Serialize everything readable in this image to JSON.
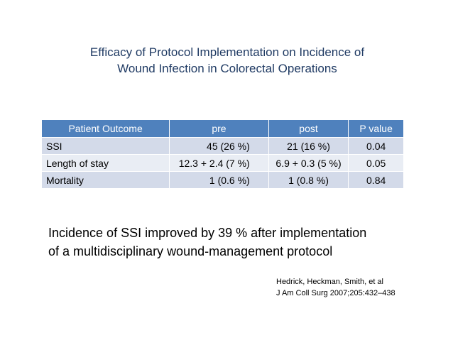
{
  "slide": {
    "title_lines": [
      "Efficacy of Protocol Implementation on Incidence of",
      "Wound Infection in Colorectal Operations"
    ],
    "table": {
      "headers": [
        "Patient Outcome",
        "pre",
        "post",
        "P value"
      ],
      "rows": [
        [
          "SSI",
          "45 (26 %)",
          "21 (16 %)",
          "0.04"
        ],
        [
          "Length of stay",
          "12.3 + 2.4 (7 %)",
          "6.9 + 0.3 (5 %)",
          "0.05"
        ],
        [
          "Mortality",
          "1 (0.6 %)",
          "1 (0.8 %)",
          "0.84"
        ]
      ]
    },
    "summary_lines": [
      "Incidence of SSI improved by 39 % after implementation",
      "of a multidisciplinary wound-management protocol"
    ],
    "citation_lines": [
      "Hedrick, Heckman, Smith, et al",
      "J Am Coll Surg 2007;205:432–438"
    ]
  },
  "colors": {
    "title_text": "#1f3a63",
    "header_bg": "#4f81bd",
    "row_band_dark": "#d3dae9",
    "row_band_light": "#e9edf4"
  }
}
